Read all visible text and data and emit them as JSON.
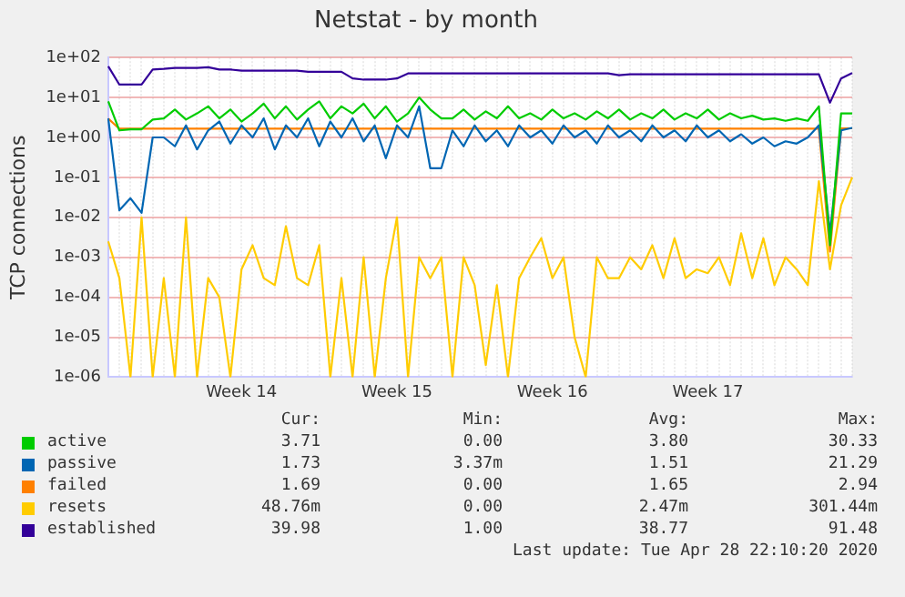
{
  "chart_data": {
    "type": "line",
    "title": "Netstat - by month",
    "ylabel": "TCP connections",
    "log": "y",
    "grid": true,
    "legend": "bottom",
    "categories": [
      null,
      null,
      null,
      null,
      null,
      null,
      null,
      null,
      null,
      null,
      null,
      null,
      "Week 14",
      null,
      null,
      null,
      null,
      null,
      null,
      null,
      null,
      null,
      null,
      null,
      null,
      null,
      "Week 15",
      null,
      null,
      null,
      null,
      null,
      null,
      null,
      null,
      null,
      null,
      null,
      null,
      null,
      "Week 16",
      null,
      null,
      null,
      null,
      null,
      null,
      null,
      null,
      null,
      null,
      null,
      null,
      null,
      "Week 17",
      null,
      null,
      null,
      null,
      null,
      null,
      null,
      null,
      null,
      null,
      null,
      null,
      null
    ],
    "ylim": [
      1e-06,
      100
    ],
    "yticks": [
      {
        "value": 1e-06,
        "label": "1e-06"
      },
      {
        "value": 1e-05,
        "label": "1e-05"
      },
      {
        "value": 0.0001,
        "label": "1e-04"
      },
      {
        "value": 0.001,
        "label": "1e-03"
      },
      {
        "value": 0.01,
        "label": "1e-02"
      },
      {
        "value": 0.1,
        "label": "1e-01"
      },
      {
        "value": 1,
        "label": "1e+00"
      },
      {
        "value": 10,
        "label": "1e+01"
      },
      {
        "value": 100,
        "label": "1e+02"
      }
    ],
    "series": [
      {
        "name": "active",
        "color": "#00cc00",
        "values": [
          8,
          1.5,
          1.6,
          1.6,
          2.8,
          3,
          5,
          2.8,
          4,
          6,
          3,
          5,
          2.5,
          4,
          7,
          3,
          6,
          2.8,
          5,
          8,
          3,
          6,
          4,
          7,
          3,
          6,
          2.5,
          4,
          10,
          5,
          3,
          3,
          5,
          2.8,
          4.5,
          3,
          6,
          3,
          4,
          2.8,
          5,
          3,
          4,
          2.8,
          4.5,
          3,
          5,
          2.8,
          4,
          3,
          5,
          2.8,
          4,
          3,
          5,
          2.8,
          4,
          3,
          3.5,
          2.8,
          3,
          2.6,
          3,
          2.6,
          6,
          0.002,
          4,
          4
        ]
      },
      {
        "name": "passive",
        "color": "#0066b3",
        "values": [
          3,
          0.015,
          0.03,
          0.013,
          1,
          1,
          0.6,
          2,
          0.5,
          1.5,
          2.5,
          0.7,
          2,
          1,
          3,
          0.5,
          2,
          1,
          3,
          0.6,
          2.5,
          1,
          3,
          0.8,
          2,
          0.3,
          2,
          1,
          6,
          0.17,
          0.17,
          1.5,
          0.6,
          2,
          0.8,
          1.5,
          0.6,
          2,
          1,
          1.5,
          0.7,
          2,
          1,
          1.5,
          0.7,
          2,
          1,
          1.5,
          0.8,
          2,
          1,
          1.5,
          0.8,
          2,
          1,
          1.5,
          0.8,
          1.2,
          0.7,
          1,
          0.6,
          0.8,
          0.7,
          1,
          2,
          0.004,
          1.5,
          1.73
        ]
      },
      {
        "name": "failed",
        "color": "#ff8000",
        "values": [
          2.94,
          1.65,
          1.65,
          1.65,
          1.65,
          1.65,
          1.65,
          1.65,
          1.65,
          1.65,
          1.65,
          1.65,
          1.65,
          1.65,
          1.65,
          1.65,
          1.65,
          1.65,
          1.65,
          1.65,
          1.65,
          1.65,
          1.65,
          1.65,
          1.65,
          1.65,
          1.65,
          1.65,
          1.65,
          1.65,
          1.65,
          1.65,
          1.65,
          1.65,
          1.65,
          1.65,
          1.65,
          1.65,
          1.65,
          1.65,
          1.65,
          1.65,
          1.65,
          1.65,
          1.65,
          1.65,
          1.65,
          1.65,
          1.65,
          1.65,
          1.65,
          1.65,
          1.65,
          1.65,
          1.65,
          1.65,
          1.65,
          1.65,
          1.65,
          1.65,
          1.65,
          1.65,
          1.65,
          1.65,
          1.65,
          0.0014,
          1.69,
          1.69
        ]
      },
      {
        "name": "resets",
        "color": "#ffcc00",
        "values": [
          0.0025,
          0.0003,
          1e-06,
          0.01,
          1e-06,
          0.0003,
          1e-06,
          0.01,
          1e-06,
          0.0003,
          0.0001,
          1e-06,
          0.0005,
          0.002,
          0.0003,
          0.0002,
          0.006,
          0.0003,
          0.0002,
          0.002,
          1e-06,
          0.0003,
          1e-06,
          0.001,
          1e-06,
          0.0003,
          0.01,
          1e-06,
          0.001,
          0.0003,
          0.001,
          1e-06,
          0.001,
          0.0002,
          2e-06,
          0.0002,
          1e-06,
          0.0003,
          0.001,
          0.003,
          0.0003,
          0.001,
          1e-05,
          1e-06,
          0.001,
          0.0003,
          0.0003,
          0.001,
          0.0005,
          0.002,
          0.0003,
          0.003,
          0.0003,
          0.0005,
          0.0004,
          0.001,
          0.0002,
          0.004,
          0.0003,
          0.003,
          0.0002,
          0.001,
          0.0005,
          0.0002,
          0.08,
          0.0005,
          0.02,
          0.1
        ]
      },
      {
        "name": "established",
        "color": "#330099",
        "values": [
          60,
          21,
          21,
          21,
          50,
          52,
          55,
          55,
          55,
          57,
          50,
          50,
          47,
          47,
          47,
          47,
          47,
          47,
          44,
          44,
          44,
          44,
          30,
          28,
          28,
          28,
          30,
          40,
          40,
          40,
          40,
          40,
          40,
          40,
          40,
          40,
          40,
          40,
          40,
          40,
          40,
          40,
          40,
          40,
          40,
          40,
          36,
          38,
          38,
          38,
          38,
          38,
          38,
          38,
          38,
          38,
          38,
          38,
          38,
          38,
          38,
          38,
          38,
          38,
          38,
          7.4,
          30,
          41
        ]
      }
    ],
    "annotations": [
      "Cur:",
      "Min:",
      "Avg:",
      "Max:",
      "3.71",
      "0.00",
      "3.80",
      "30.33",
      "1.73",
      "3.37m",
      "1.51",
      "21.29",
      "1.69",
      "0.00",
      "1.65",
      "2.94",
      "48.76m",
      "0.00",
      "2.47m",
      "301.44m",
      "39.98",
      "1.00",
      "38.77",
      "91.48",
      "Last update: Tue Apr 28 22:10:20 2020"
    ]
  }
}
